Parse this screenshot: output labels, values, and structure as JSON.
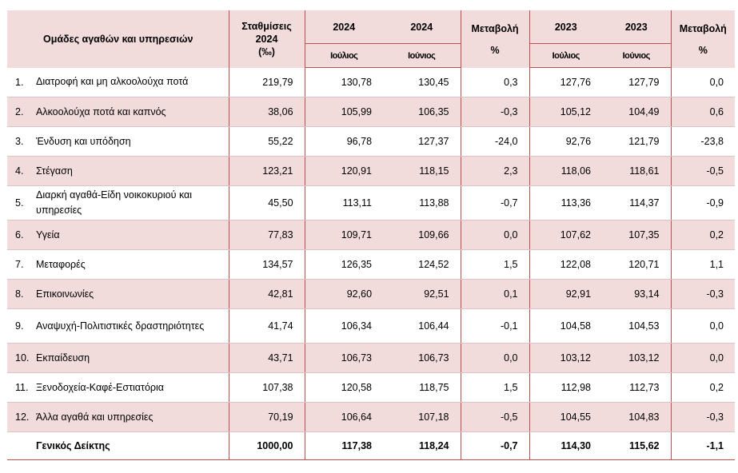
{
  "header": {
    "groups_title": "Ομάδες αγαθών και υπηρεσιών",
    "weights_line1": "Σταθμίσεις",
    "weights_line2": "2024",
    "weights_line3": "(‰)",
    "year_a": "2024",
    "year_b": "2024",
    "change_1": "Μεταβολή",
    "change_1_pct": "%",
    "year_c": "2023",
    "year_d": "2023",
    "change_2": "Μεταβολή",
    "change_2_pct": "%",
    "month_a": "Ιούλιος",
    "month_b": "Ιούνιος",
    "month_c": "Ιούλιος",
    "month_d": "Ιούνιος"
  },
  "rows": [
    {
      "idx": "1.",
      "name": "Διατροφή και μη αλκοολούχα ποτά",
      "weight": "219,79",
      "jul24": "130,78",
      "jun24": "130,45",
      "ch24": "0,3",
      "jul23": "127,76",
      "jun23": "127,79",
      "ch23": "0,0"
    },
    {
      "idx": "2.",
      "name": "Αλκοολούχα ποτά και καπνός",
      "weight": "38,06",
      "jul24": "105,99",
      "jun24": "106,35",
      "ch24": "-0,3",
      "jul23": "105,12",
      "jun23": "104,49",
      "ch23": "0,6"
    },
    {
      "idx": "3.",
      "name": "Ένδυση και υπόδηση",
      "weight": "55,22",
      "jul24": "96,78",
      "jun24": "127,37",
      "ch24": "-24,0",
      "jul23": "92,76",
      "jun23": "121,79",
      "ch23": "-23,8"
    },
    {
      "idx": "4.",
      "name": "Στέγαση",
      "weight": "123,21",
      "jul24": "120,91",
      "jun24": "118,15",
      "ch24": "2,3",
      "jul23": "118,06",
      "jun23": "118,61",
      "ch23": "-0,5"
    },
    {
      "idx": "5.",
      "name": "Διαρκή αγαθά-Είδη νοικοκυριού και υπηρεσίες",
      "weight": "45,50",
      "jul24": "113,11",
      "jun24": "113,88",
      "ch24": "-0,7",
      "jul23": "113,36",
      "jun23": "114,37",
      "ch23": "-0,9"
    },
    {
      "idx": "6.",
      "name": "Υγεία",
      "weight": "77,83",
      "jul24": "109,71",
      "jun24": "109,66",
      "ch24": "0,0",
      "jul23": "107,62",
      "jun23": "107,35",
      "ch23": "0,2"
    },
    {
      "idx": "7.",
      "name": "Μεταφορές",
      "weight": "134,57",
      "jul24": "126,35",
      "jun24": "124,52",
      "ch24": "1,5",
      "jul23": "122,08",
      "jun23": "120,71",
      "ch23": "1,1"
    },
    {
      "idx": "8.",
      "name": "Επικοινωνίες",
      "weight": "42,81",
      "jul24": "92,60",
      "jun24": "92,51",
      "ch24": "0,1",
      "jul23": "92,91",
      "jun23": "93,14",
      "ch23": "-0,3"
    },
    {
      "idx": "9.",
      "name": "Αναψυχή-Πολιτιστικές δραστηριότητες",
      "weight": "41,74",
      "jul24": "106,34",
      "jun24": "106,44",
      "ch24": "-0,1",
      "jul23": "104,58",
      "jun23": "104,53",
      "ch23": "0,0"
    },
    {
      "idx": "10.",
      "name": "Εκπαίδευση",
      "weight": "43,71",
      "jul24": "106,73",
      "jun24": "106,73",
      "ch24": "0,0",
      "jul23": "103,12",
      "jun23": "103,12",
      "ch23": "0,0"
    },
    {
      "idx": "11.",
      "name": "Ξενοδοχεία-Καφέ-Εστιατόρια",
      "weight": "107,38",
      "jul24": "120,58",
      "jun24": "118,75",
      "ch24": "1,5",
      "jul23": "112,98",
      "jun23": "112,73",
      "ch23": "0,2"
    },
    {
      "idx": "12.",
      "name": "Άλλα αγαθά και υπηρεσίες",
      "weight": "70,19",
      "jul24": "106,64",
      "jun24": "107,18",
      "ch24": "-0,5",
      "jul23": "104,55",
      "jun23": "104,83",
      "ch23": "-0,3"
    }
  ],
  "total": {
    "name": "Γενικός Δείκτης",
    "weight": "1000,00",
    "jul24": "117,38",
    "jun24": "118,24",
    "ch24": "-0,7",
    "jul23": "114,30",
    "jun23": "115,62",
    "ch23": "-1,1"
  }
}
